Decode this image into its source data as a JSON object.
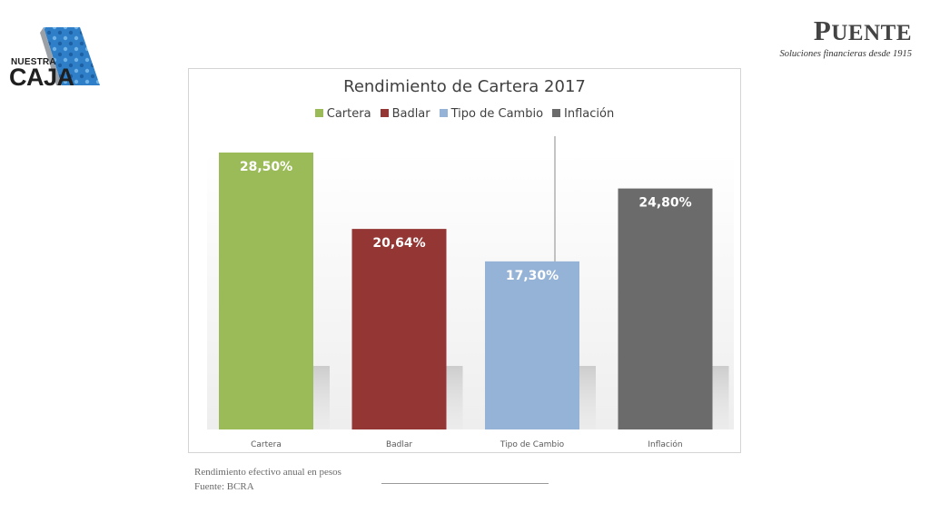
{
  "logos": {
    "left": {
      "line1": "NUESTRA",
      "line2": "CAJA"
    },
    "right": {
      "brand_initial": "P",
      "brand_rest": "UENTE",
      "tagline": "Soluciones financieras desde 1915"
    }
  },
  "chart_data": {
    "type": "bar",
    "title": "Rendimiento de Cartera 2017",
    "categories": [
      "Cartera",
      "Badlar",
      "Tipo de Cambio",
      "Inflación"
    ],
    "values": [
      28.5,
      20.64,
      17.3,
      24.8
    ],
    "value_labels": [
      "28,50%",
      "20,64%",
      "17,30%",
      "24,80%"
    ],
    "colors": [
      "#9bbb59",
      "#943634",
      "#95b3d7",
      "#6b6b6b"
    ],
    "legend": [
      "Cartera",
      "Badlar",
      "Tipo de Cambio",
      "Inflación"
    ],
    "legend_position": "top",
    "ylim": [
      0,
      28.5
    ],
    "grid": false,
    "xlabel": "",
    "ylabel": ""
  },
  "footnote": {
    "line1": "Rendimiento efectivo anual en pesos",
    "line2": "Fuente: BCRA"
  }
}
